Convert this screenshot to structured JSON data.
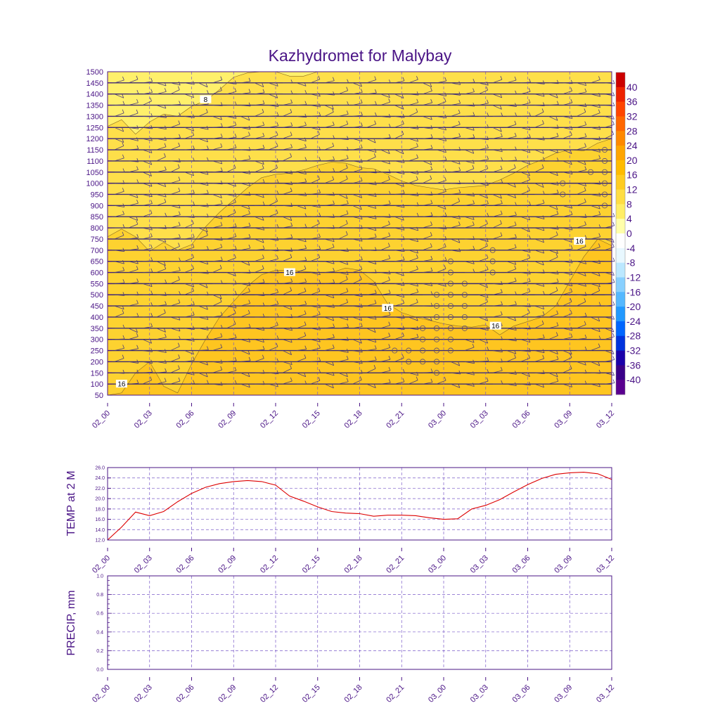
{
  "chart_data": [
    {
      "type": "heatmap",
      "title": "Kazhydromet for Malybay",
      "x_ticks": [
        "02_00",
        "02_03",
        "02_06",
        "02_09",
        "02_12",
        "02_15",
        "02_18",
        "02_21",
        "03_00",
        "03_03",
        "03_06",
        "03_09",
        "03_12"
      ],
      "y_ticks": [
        "50",
        "100",
        "150",
        "200",
        "250",
        "300",
        "350",
        "400",
        "450",
        "500",
        "550",
        "600",
        "650",
        "700",
        "750",
        "800",
        "850",
        "900",
        "950",
        "1000",
        "1050",
        "1100",
        "1150",
        "1200",
        "1250",
        "1300",
        "1350",
        "1400",
        "1450",
        "1500"
      ],
      "ylim": [
        50,
        1500
      ],
      "x_hours": [
        0,
        36
      ],
      "contour_labels": [
        {
          "text": "8",
          "hour": 7,
          "level": 1375
        },
        {
          "text": "16",
          "hour": 13,
          "level": 600
        },
        {
          "text": "16",
          "hour": 20,
          "level": 440
        },
        {
          "text": "16",
          "hour": 27.7,
          "level": 360
        },
        {
          "text": "16",
          "hour": 33.7,
          "level": 740
        },
        {
          "text": "16",
          "hour": 1,
          "level": 100
        }
      ],
      "contour_8": [
        [
          0,
          1255
        ],
        [
          1,
          1285
        ],
        [
          2,
          1220
        ],
        [
          3,
          1275
        ],
        [
          4,
          1310
        ],
        [
          5,
          1300
        ],
        [
          6,
          1345
        ],
        [
          7,
          1370
        ],
        [
          8,
          1420
        ],
        [
          9,
          1475
        ],
        [
          10,
          1495
        ],
        [
          11,
          1500
        ],
        [
          12,
          1500
        ],
        [
          13,
          1480
        ],
        [
          14,
          1480
        ],
        [
          15,
          1500
        ]
      ],
      "contour_12": [
        [
          0,
          760
        ],
        [
          1,
          795
        ],
        [
          2,
          760
        ],
        [
          3,
          695
        ],
        [
          4,
          735
        ],
        [
          5,
          700
        ],
        [
          6,
          725
        ],
        [
          7,
          805
        ],
        [
          8,
          870
        ],
        [
          9,
          925
        ],
        [
          10,
          980
        ],
        [
          11,
          1025
        ],
        [
          12,
          1040
        ],
        [
          13,
          1045
        ],
        [
          14,
          1060
        ],
        [
          15,
          1080
        ],
        [
          16,
          1095
        ],
        [
          17,
          1090
        ],
        [
          18,
          1070
        ],
        [
          19,
          1065
        ],
        [
          20,
          1040
        ],
        [
          21,
          1010
        ],
        [
          22,
          990
        ],
        [
          23,
          980
        ],
        [
          24,
          970
        ],
        [
          25,
          980
        ],
        [
          26,
          985
        ],
        [
          27,
          990
        ],
        [
          28,
          1015
        ],
        [
          29,
          1045
        ],
        [
          30,
          1080
        ],
        [
          31,
          1105
        ],
        [
          32,
          1135
        ],
        [
          33,
          1150
        ],
        [
          34,
          1145
        ],
        [
          35,
          1180
        ],
        [
          36,
          1200
        ]
      ],
      "contour_16": [
        [
          0,
          50
        ],
        [
          1,
          60
        ],
        [
          2,
          150
        ],
        [
          3,
          200
        ],
        [
          4,
          90
        ],
        [
          5,
          60
        ],
        [
          6,
          190
        ],
        [
          7,
          300
        ],
        [
          8,
          400
        ],
        [
          9,
          470
        ],
        [
          10,
          540
        ],
        [
          11,
          590
        ],
        [
          12,
          610
        ],
        [
          13,
          610
        ],
        [
          14,
          605
        ],
        [
          15,
          600
        ],
        [
          16,
          600
        ],
        [
          17,
          620
        ],
        [
          18,
          610
        ],
        [
          19,
          560
        ],
        [
          20,
          460
        ],
        [
          21,
          420
        ],
        [
          22,
          400
        ],
        [
          23,
          385
        ],
        [
          24,
          370
        ],
        [
          25,
          360
        ],
        [
          26,
          355
        ],
        [
          27,
          365
        ],
        [
          28,
          320
        ],
        [
          29,
          360
        ],
        [
          30,
          380
        ],
        [
          31,
          400
        ],
        [
          32,
          450
        ],
        [
          33,
          560
        ],
        [
          34,
          670
        ],
        [
          35,
          750
        ],
        [
          36,
          720
        ]
      ],
      "calm_circles": [
        [
          35,
          1150
        ],
        [
          35,
          1100
        ],
        [
          34,
          1050
        ],
        [
          35,
          1050
        ],
        [
          32,
          1000
        ],
        [
          35,
          1000
        ],
        [
          32,
          950
        ],
        [
          35,
          950
        ],
        [
          35,
          900
        ],
        [
          27,
          700
        ],
        [
          24,
          650
        ],
        [
          27,
          650
        ],
        [
          24,
          600
        ],
        [
          27,
          600
        ],
        [
          24,
          550
        ],
        [
          25,
          550
        ],
        [
          23,
          500
        ],
        [
          24,
          500
        ],
        [
          25,
          500
        ],
        [
          23,
          450
        ],
        [
          24,
          450
        ],
        [
          25,
          450
        ],
        [
          23,
          400
        ],
        [
          24,
          400
        ],
        [
          25,
          400
        ],
        [
          22,
          350
        ],
        [
          23,
          350
        ],
        [
          24,
          350
        ],
        [
          25,
          350
        ],
        [
          22,
          300
        ],
        [
          23,
          300
        ],
        [
          24,
          300
        ],
        [
          20,
          250
        ],
        [
          21,
          250
        ],
        [
          22,
          250
        ],
        [
          23,
          250
        ],
        [
          24,
          250
        ],
        [
          21,
          200
        ],
        [
          22,
          200
        ],
        [
          23,
          200
        ],
        [
          23,
          150
        ]
      ],
      "colorbar": {
        "labels": [
          "40",
          "36",
          "32",
          "28",
          "24",
          "20",
          "16",
          "12",
          "8",
          "4",
          "0",
          "-4",
          "-8",
          "-12",
          "-16",
          "-20",
          "-24",
          "-28",
          "-32",
          "-36",
          "-40"
        ],
        "colors": [
          "#cc0000",
          "#ee2200",
          "#ff4400",
          "#ff6600",
          "#ff8800",
          "#ffa500",
          "#ffbb00",
          "#ffcc22",
          "#ffdd44",
          "#ffee66",
          "#ffffaa",
          "#ffffff",
          "#e8f8ff",
          "#bbe8ff",
          "#88d0ff",
          "#55b8ff",
          "#2299ff",
          "#0066ff",
          "#0033dd",
          "#1a00aa",
          "#3a0088",
          "#5a0090"
        ]
      },
      "fill_colors": {
        "low": "#fff06b",
        "mid": "#fedf4a",
        "high": "#fdd230",
        "top": "#fec520"
      }
    },
    {
      "type": "line",
      "ylabel": "TEMP at 2 M",
      "ylim": [
        12.0,
        26.0
      ],
      "y_ticks": [
        "12.0",
        "14.0",
        "16.0",
        "18.0",
        "20.0",
        "22.0",
        "24.0",
        "26.0"
      ],
      "x_ticks": [
        "02_00",
        "02_03",
        "02_06",
        "02_09",
        "02_12",
        "02_15",
        "02_18",
        "02_21",
        "03_00",
        "03_03",
        "03_06",
        "03_09",
        "03_12"
      ],
      "hours": [
        0,
        1,
        2,
        3,
        4,
        5,
        6,
        7,
        8,
        9,
        10,
        11,
        12,
        13,
        14,
        15,
        16,
        17,
        18,
        19,
        20,
        21,
        22,
        23,
        24,
        25,
        26,
        27,
        28,
        29,
        30,
        31,
        32,
        33,
        34,
        35,
        36
      ],
      "values": [
        12.0,
        14.5,
        17.4,
        16.7,
        17.5,
        19.4,
        21.0,
        22.2,
        22.9,
        23.3,
        23.5,
        23.3,
        22.6,
        20.5,
        19.5,
        18.4,
        17.5,
        17.2,
        17.1,
        16.6,
        16.8,
        16.8,
        16.7,
        16.3,
        16.0,
        16.1,
        18.0,
        18.7,
        19.8,
        21.3,
        22.7,
        23.9,
        24.7,
        25.0,
        25.1,
        24.8,
        23.7
      ],
      "series_color": "#dd0000"
    },
    {
      "type": "line",
      "ylabel": "PRECIP, mm",
      "ylim": [
        0.0,
        1.0
      ],
      "y_ticks": [
        "0.0",
        "0.2",
        "0.4",
        "0.6",
        "0.8",
        "1.0"
      ],
      "x_ticks": [
        "02_00",
        "02_03",
        "02_06",
        "02_09",
        "02_12",
        "02_15",
        "02_18",
        "02_21",
        "03_00",
        "03_03",
        "03_06",
        "03_09",
        "03_12"
      ],
      "values": []
    }
  ]
}
